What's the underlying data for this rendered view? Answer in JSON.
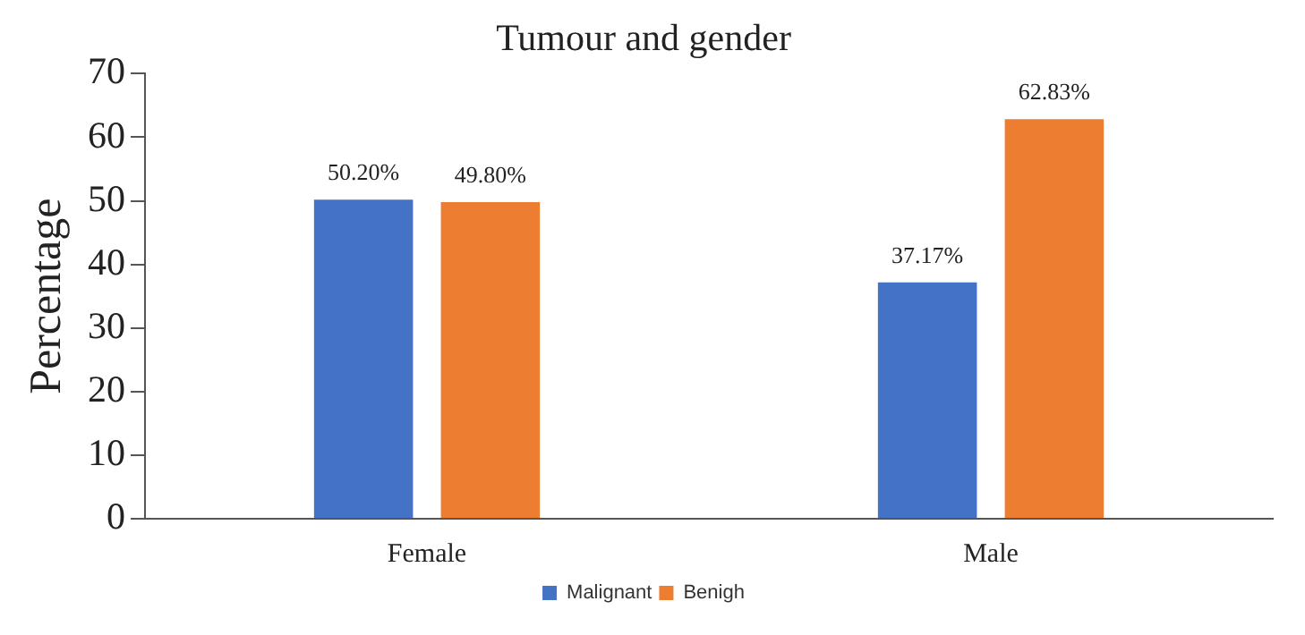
{
  "chart_data": {
    "type": "bar",
    "title": "Tumour and gender",
    "ylabel": "Percentage",
    "categories": [
      "Female",
      "Male"
    ],
    "series": [
      {
        "name": "Malignant",
        "color": "#4472c4",
        "values": [
          50.2,
          37.17
        ],
        "value_labels": [
          "50.20%",
          "37.17%"
        ]
      },
      {
        "name": "Benigh",
        "color": "#ed7d31",
        "values": [
          49.8,
          62.83
        ],
        "value_labels": [
          "49.80%",
          "62.83%"
        ]
      }
    ],
    "ylim": [
      0,
      70
    ],
    "yticks": [
      0,
      10,
      20,
      30,
      40,
      50,
      60,
      70
    ],
    "grid": false,
    "legend": "bottom"
  }
}
